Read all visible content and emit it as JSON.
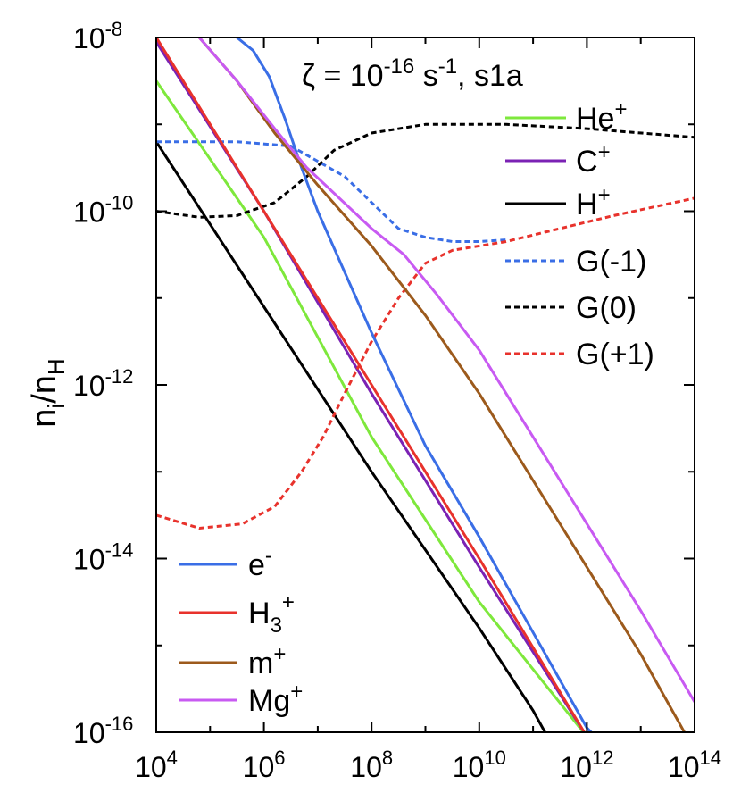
{
  "chart_data": {
    "type": "line",
    "xscale": "log",
    "yscale": "log",
    "xlim": [
      4,
      14
    ],
    "ylim": [
      -16,
      -8
    ],
    "x_tick_exponents": [
      "4",
      "6",
      "8",
      "10",
      "12",
      "14"
    ],
    "y_tick_exponents": [
      "-8",
      "-10",
      "-12",
      "-14",
      "-16"
    ],
    "tick_base": "10",
    "ylabel": {
      "main1": "n",
      "sub1": "i",
      "slash": "/n",
      "sub2": "H"
    },
    "title": {
      "prefix": "ζ = 10",
      "sup": "-16",
      "mid": " s",
      "sup2": "-1",
      "suffix": ", s1a"
    },
    "note": "x and y values are log10 of the plotted quantities",
    "series": [
      {
        "key": "He",
        "legend_main": "He",
        "legend_sup": "+",
        "legend_sub": "",
        "color": "#7ee83c",
        "dash": "solid",
        "points": [
          [
            4.0,
            -8.5
          ],
          [
            6,
            -10.3
          ],
          [
            8,
            -12.6
          ],
          [
            10,
            -14.5
          ],
          [
            12,
            -16.05
          ],
          [
            12.15,
            -16.2
          ]
        ]
      },
      {
        "key": "C",
        "legend_main": "C",
        "legend_sup": "+",
        "legend_sub": "",
        "color": "#7b22b4",
        "dash": "solid",
        "points": [
          [
            4.0,
            -8.05
          ],
          [
            6,
            -10.0
          ],
          [
            8,
            -12.1
          ],
          [
            10,
            -14.1
          ],
          [
            12,
            -16.05
          ],
          [
            12.2,
            -16.2
          ]
        ]
      },
      {
        "key": "H",
        "legend_main": "H",
        "legend_sup": "+",
        "legend_sub": "",
        "color": "#000000",
        "dash": "solid",
        "points": [
          [
            4.0,
            -9.2
          ],
          [
            6,
            -11.1
          ],
          [
            8,
            -13.0
          ],
          [
            10,
            -14.8
          ],
          [
            11.0,
            -15.75
          ],
          [
            11.4,
            -16.2
          ]
        ]
      },
      {
        "key": "Gm1",
        "legend_main": "G(-1)",
        "legend_sup": "",
        "legend_sub": "",
        "color": "#3a6ee6",
        "dash": "dotted",
        "points": [
          [
            4.0,
            -9.2
          ],
          [
            5.5,
            -9.2
          ],
          [
            6.5,
            -9.25
          ],
          [
            7.5,
            -9.6
          ],
          [
            8.5,
            -10.2
          ],
          [
            9.0,
            -10.3
          ],
          [
            9.5,
            -10.35
          ],
          [
            10,
            -10.35
          ],
          [
            10.5,
            -10.33
          ]
        ]
      },
      {
        "key": "G0",
        "legend_main": "G(0)",
        "legend_sup": "",
        "legend_sub": "",
        "color": "#000000",
        "dash": "dotted",
        "points": [
          [
            4.0,
            -10.0
          ],
          [
            4.8,
            -10.07
          ],
          [
            5.5,
            -10.05
          ],
          [
            6.2,
            -9.9
          ],
          [
            6.8,
            -9.6
          ],
          [
            7.3,
            -9.3
          ],
          [
            8,
            -9.1
          ],
          [
            9,
            -9.0
          ],
          [
            10.5,
            -9.0
          ],
          [
            12,
            -9.05
          ],
          [
            14,
            -9.15
          ]
        ]
      },
      {
        "key": "Gp1",
        "legend_main": "G(+1)",
        "legend_sup": "",
        "legend_sub": "",
        "color": "#e8322c",
        "dash": "dotted",
        "points": [
          [
            4.0,
            -13.5
          ],
          [
            4.8,
            -13.65
          ],
          [
            5.6,
            -13.6
          ],
          [
            6.2,
            -13.4
          ],
          [
            6.7,
            -13.0
          ],
          [
            7.1,
            -12.6
          ],
          [
            7.5,
            -12.1
          ],
          [
            8,
            -11.5
          ],
          [
            8.5,
            -11.0
          ],
          [
            9,
            -10.6
          ],
          [
            9.5,
            -10.45
          ],
          [
            10.5,
            -10.35
          ],
          [
            11.5,
            -10.2
          ],
          [
            12.5,
            -10.05
          ],
          [
            14,
            -9.85
          ]
        ]
      },
      {
        "key": "e",
        "legend_main": "e",
        "legend_sup": "-",
        "legend_sub": "",
        "color": "#3a6ee6",
        "dash": "solid",
        "points": [
          [
            5.5,
            -8.0
          ],
          [
            5.8,
            -8.15
          ],
          [
            6.1,
            -8.45
          ],
          [
            6.4,
            -8.95
          ],
          [
            6.7,
            -9.5
          ],
          [
            7,
            -10.0
          ],
          [
            7.5,
            -10.7
          ],
          [
            8,
            -11.4
          ],
          [
            9,
            -12.7
          ],
          [
            10,
            -13.75
          ],
          [
            11,
            -14.85
          ],
          [
            12,
            -15.95
          ],
          [
            12.4,
            -16.2
          ]
        ]
      },
      {
        "key": "H3",
        "legend_main": "H",
        "legend_sup": "+",
        "legend_sub": "3",
        "color": "#e8322c",
        "dash": "solid",
        "points": [
          [
            4.0,
            -8.0
          ],
          [
            6,
            -10.0
          ],
          [
            8,
            -12.0
          ],
          [
            10,
            -14.0
          ],
          [
            12,
            -16.05
          ],
          [
            12.15,
            -16.2
          ]
        ]
      },
      {
        "key": "m",
        "legend_main": "m",
        "legend_sup": "+",
        "legend_sub": "",
        "color": "#9c5a1c",
        "dash": "solid",
        "points": [
          [
            4.8,
            -8.0
          ],
          [
            5.5,
            -8.5
          ],
          [
            6.2,
            -9.1
          ],
          [
            7,
            -9.7
          ],
          [
            8,
            -10.4
          ],
          [
            9,
            -11.2
          ],
          [
            10,
            -12.1
          ],
          [
            11,
            -13.1
          ],
          [
            12,
            -14.1
          ],
          [
            13,
            -15.1
          ],
          [
            13.9,
            -16.1
          ]
        ]
      },
      {
        "key": "Mg",
        "legend_main": "Mg",
        "legend_sup": "+",
        "legend_sub": "",
        "color": "#c85af2",
        "dash": "solid",
        "points": [
          [
            4.8,
            -8.0
          ],
          [
            5.5,
            -8.5
          ],
          [
            6.2,
            -9.05
          ],
          [
            6.8,
            -9.5
          ],
          [
            7.4,
            -9.85
          ],
          [
            8,
            -10.2
          ],
          [
            8.6,
            -10.5
          ],
          [
            9.2,
            -10.95
          ],
          [
            10,
            -11.6
          ],
          [
            11,
            -12.6
          ],
          [
            12,
            -13.6
          ],
          [
            13,
            -14.6
          ],
          [
            14,
            -15.65
          ]
        ]
      }
    ],
    "legend_top": [
      "He",
      "C",
      "H",
      "Gm1",
      "G0",
      "Gp1"
    ],
    "legend_bottom": [
      "e",
      "H3",
      "m",
      "Mg"
    ]
  }
}
